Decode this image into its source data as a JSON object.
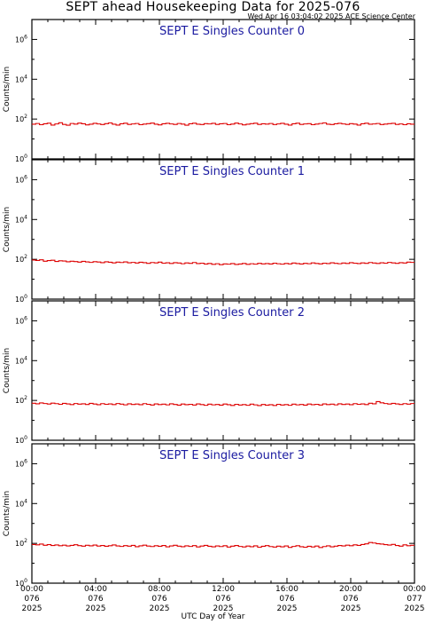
{
  "header": {
    "title": "SEPT ahead Housekeeping Data for 2025-076",
    "timestamp": "Wed Apr 16 03:04:02 2025 ACE Science Center",
    "xlabel": "UTC Day of Year"
  },
  "colors": {
    "series": "#dd0000",
    "panel_title": "#1a1aa0",
    "axes": "#000000"
  },
  "chart_data": [
    {
      "type": "line",
      "step": true,
      "title": "SEPT E Singles Counter 0",
      "ylabel": "Counts/min",
      "yscale": "log",
      "ylim": [
        1,
        10000000
      ],
      "yticks": [
        {
          "exp": "0"
        },
        {
          "exp": "2"
        },
        {
          "exp": "4"
        },
        {
          "exp": "6"
        }
      ],
      "xlim": [
        0,
        24
      ],
      "values": [
        55,
        60,
        52,
        58,
        62,
        50,
        57,
        65,
        54,
        49,
        60,
        56,
        63,
        58,
        51,
        55,
        61,
        57,
        53,
        59,
        64,
        55,
        50,
        58,
        62,
        54,
        57,
        60,
        52,
        56,
        59,
        63,
        55,
        51,
        58,
        61,
        57,
        54,
        60,
        56,
        49,
        58,
        62,
        55,
        53,
        59,
        57,
        61,
        54,
        58,
        60,
        52,
        56,
        63,
        57,
        51,
        55,
        59,
        62,
        54,
        58,
        56,
        60,
        53,
        57,
        61,
        55,
        50,
        58,
        62,
        54,
        57,
        59,
        52,
        56,
        60,
        64,
        55,
        53,
        58,
        61,
        57,
        54,
        59,
        56,
        50,
        58,
        62,
        55,
        57,
        60,
        53,
        56,
        59,
        61,
        54,
        57,
        52,
        58,
        55
      ]
    },
    {
      "type": "line",
      "step": true,
      "title": "SEPT E Singles Counter 1",
      "ylabel": "Counts/min",
      "yscale": "log",
      "ylim": [
        1,
        10000000
      ],
      "yticks": [
        {
          "exp": "0"
        },
        {
          "exp": "2"
        },
        {
          "exp": "4"
        },
        {
          "exp": "6"
        }
      ],
      "xlim": [
        0,
        24
      ],
      "values": [
        92,
        88,
        95,
        80,
        86,
        90,
        78,
        84,
        82,
        75,
        80,
        77,
        72,
        79,
        74,
        70,
        76,
        73,
        68,
        75,
        71,
        66,
        72,
        69,
        74,
        67,
        70,
        65,
        71,
        68,
        63,
        69,
        66,
        72,
        64,
        67,
        62,
        68,
        65,
        60,
        66,
        63,
        69,
        61,
        64,
        58,
        62,
        56,
        60,
        54,
        59,
        57,
        61,
        55,
        58,
        62,
        56,
        60,
        57,
        63,
        59,
        61,
        58,
        64,
        60,
        57,
        62,
        59,
        65,
        61,
        58,
        63,
        60,
        66,
        62,
        59,
        64,
        61,
        67,
        63,
        60,
        65,
        62,
        68,
        64,
        61,
        66,
        63,
        69,
        65,
        62,
        67,
        64,
        70,
        66,
        63,
        68,
        65,
        72,
        70
      ]
    },
    {
      "type": "line",
      "step": true,
      "title": "SEPT E Singles Counter 2",
      "ylabel": "Counts/min",
      "yscale": "log",
      "ylim": [
        1,
        10000000
      ],
      "yticks": [
        {
          "exp": "0"
        },
        {
          "exp": "2"
        },
        {
          "exp": "4"
        },
        {
          "exp": "6"
        }
      ],
      "xlim": [
        0,
        24
      ],
      "values": [
        72,
        68,
        75,
        70,
        66,
        73,
        69,
        64,
        71,
        67,
        62,
        70,
        65,
        68,
        63,
        71,
        66,
        61,
        69,
        64,
        67,
        62,
        70,
        65,
        60,
        68,
        63,
        66,
        61,
        69,
        64,
        59,
        67,
        62,
        65,
        60,
        68,
        63,
        58,
        66,
        61,
        64,
        59,
        67,
        62,
        57,
        65,
        60,
        63,
        58,
        66,
        61,
        56,
        64,
        59,
        62,
        57,
        65,
        60,
        55,
        63,
        58,
        61,
        56,
        64,
        59,
        62,
        57,
        65,
        60,
        63,
        58,
        66,
        61,
        64,
        59,
        67,
        62,
        65,
        60,
        68,
        63,
        66,
        61,
        69,
        64,
        67,
        62,
        72,
        68,
        88,
        76,
        70,
        66,
        71,
        67,
        63,
        69,
        65,
        70
      ]
    },
    {
      "type": "line",
      "step": true,
      "title": "SEPT E Singles Counter 3",
      "ylabel": "Counts/min",
      "yscale": "log",
      "ylim": [
        1,
        10000000
      ],
      "yticks": [
        {
          "exp": "0"
        },
        {
          "exp": "2"
        },
        {
          "exp": "4"
        },
        {
          "exp": "6"
        }
      ],
      "xlim": [
        0,
        24
      ],
      "values": [
        88,
        84,
        92,
        80,
        86,
        78,
        83,
        76,
        81,
        74,
        79,
        85,
        77,
        72,
        80,
        75,
        82,
        73,
        78,
        71,
        76,
        83,
        74,
        70,
        77,
        72,
        79,
        68,
        75,
        81,
        73,
        69,
        76,
        71,
        78,
        67,
        74,
        80,
        72,
        68,
        75,
        70,
        77,
        66,
        73,
        79,
        71,
        67,
        74,
        69,
        76,
        65,
        72,
        78,
        70,
        66,
        73,
        68,
        75,
        64,
        71,
        77,
        69,
        65,
        72,
        67,
        74,
        63,
        70,
        76,
        68,
        64,
        71,
        66,
        73,
        62,
        69,
        75,
        67,
        72,
        78,
        74,
        81,
        76,
        84,
        79,
        88,
        95,
        110,
        104,
        96,
        92,
        86,
        82,
        89,
        78,
        72,
        84,
        76,
        80
      ]
    }
  ],
  "xaxis": {
    "ticks": [
      {
        "time": "00:00",
        "doy": "076",
        "year": "2025"
      },
      {
        "time": "04:00",
        "doy": "076",
        "year": "2025"
      },
      {
        "time": "08:00",
        "doy": "076",
        "year": "2025"
      },
      {
        "time": "12:00",
        "doy": "076",
        "year": "2025"
      },
      {
        "time": "16:00",
        "doy": "076",
        "year": "2025"
      },
      {
        "time": "20:00",
        "doy": "076",
        "year": "2025"
      },
      {
        "time": "00:00",
        "doy": "077",
        "year": "2025"
      }
    ]
  }
}
